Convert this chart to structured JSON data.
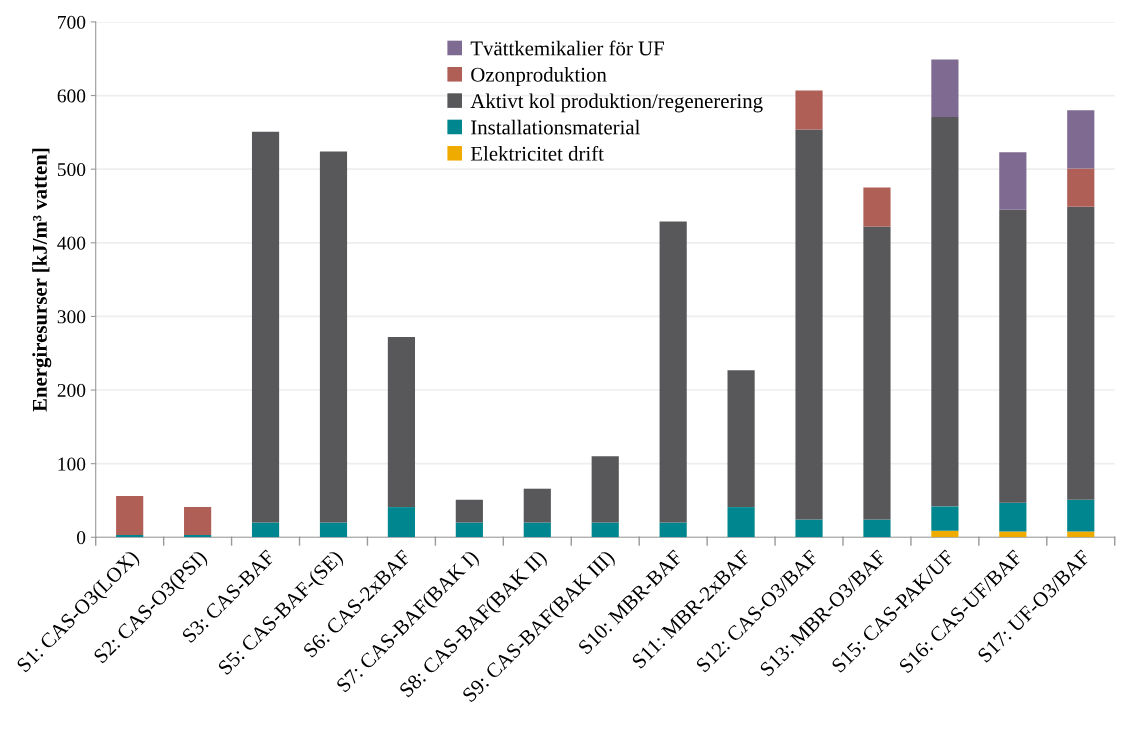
{
  "chart_data": {
    "type": "bar",
    "stacked": true,
    "ylabel": "Energiresurser [kJ/m³ vatten]",
    "categories": [
      "S1: CAS-O3(LOX)",
      "S2: CAS-O3(PSI)",
      "S3: CAS-BAF",
      "S5: CAS-BAF-(SE)",
      "S6: CAS-2xBAF",
      "S7: CAS-BAF(BAK I)",
      "S8: CAS-BAF(BAK II)",
      "S9: CAS-BAF(BAK III)",
      "S10: MBR-BAF",
      "S11: MBR-2xBAF",
      "S12: CAS-O3/BAF",
      "S13: MBR-O3/BAF",
      "S15: CAS-PAK/UF",
      "S16: CAS-UF/BAF",
      "S17: UF-O3/BAF"
    ],
    "series": [
      {
        "name": "Elektricitet drift",
        "color": "#f0ab00",
        "values": [
          null,
          null,
          null,
          null,
          null,
          null,
          null,
          null,
          null,
          null,
          null,
          null,
          9,
          8,
          8
        ]
      },
      {
        "name": "Installationsmaterial",
        "color": "#00868f",
        "values": [
          3,
          3,
          20,
          20,
          41,
          20,
          20,
          20,
          20,
          41,
          24,
          24,
          33,
          39,
          43
        ]
      },
      {
        "name": "Aktivt kol produktion/regenerering",
        "color": "#58585b",
        "values": [
          null,
          null,
          531,
          504,
          231,
          31,
          46,
          90,
          409,
          186,
          530,
          398,
          529,
          398,
          398
        ]
      },
      {
        "name": "Ozonproduktion",
        "color": "#b05f57",
        "values": [
          53,
          38,
          null,
          null,
          null,
          null,
          null,
          null,
          null,
          null,
          53,
          53,
          null,
          null,
          52
        ]
      },
      {
        "name": "Tvättkemikalier för UF",
        "color": "#7f6a91",
        "values": [
          null,
          null,
          null,
          null,
          null,
          null,
          null,
          null,
          null,
          null,
          null,
          null,
          78,
          78,
          79
        ]
      }
    ],
    "ylim": [
      0,
      700
    ],
    "yticks": [
      0,
      100,
      200,
      300,
      400,
      500,
      600,
      700
    ],
    "grid": "y",
    "legend": "top"
  }
}
